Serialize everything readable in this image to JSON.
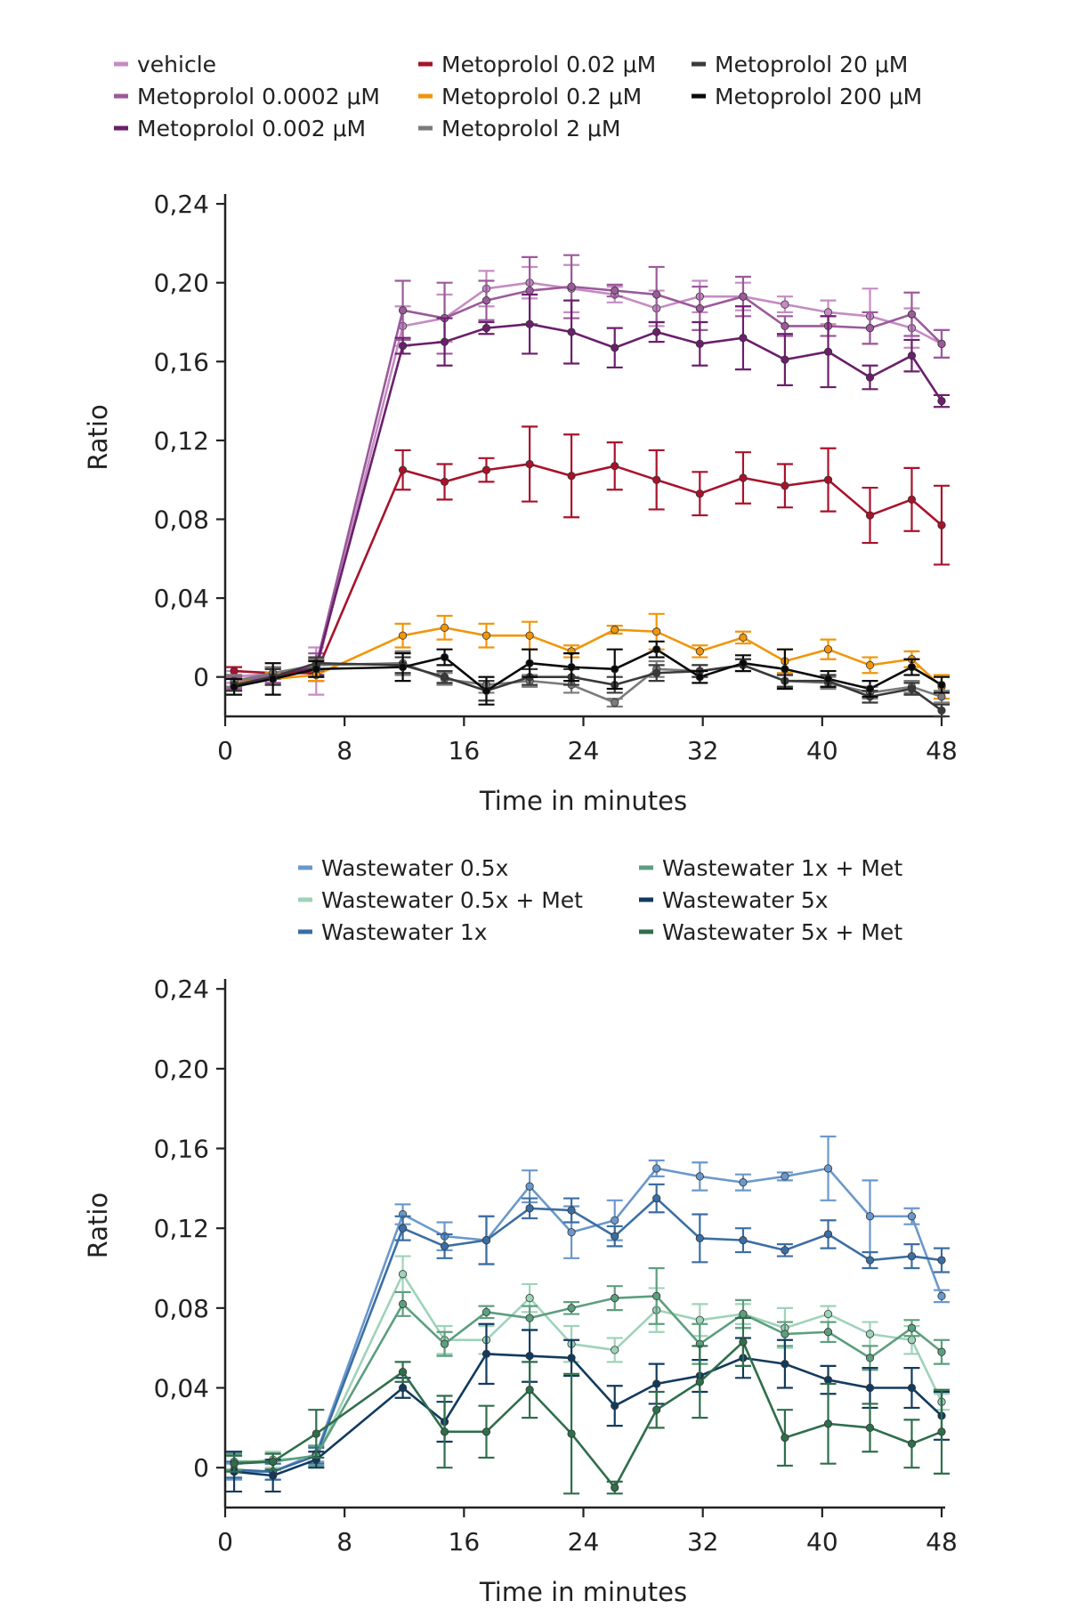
{
  "chart_data": [
    {
      "type": "line",
      "xlabel": "Time in minutes",
      "ylabel": "Ratio",
      "xlim": [
        0,
        48
      ],
      "ylim": [
        -0.02,
        0.245
      ],
      "xticks": [
        "0",
        "8",
        "16",
        "24",
        "32",
        "40",
        "48"
      ],
      "xtick_values": [
        0,
        8,
        16,
        24,
        32,
        40,
        48
      ],
      "yticks": [
        "0",
        "0,04",
        "0,08",
        "0,12",
        "0,16",
        "0,20",
        "0,24"
      ],
      "ytick_values": [
        0,
        0.04,
        0.08,
        0.12,
        0.16,
        0.2,
        0.24
      ],
      "legend_placement": "top",
      "x": [
        0.6,
        3.2,
        6.1,
        11.9,
        14.7,
        17.5,
        20.4,
        23.2,
        26.1,
        28.9,
        31.8,
        34.7,
        37.5,
        40.4,
        43.2,
        46.0,
        48.0
      ],
      "series": [
        {
          "name": "vehicle",
          "color": "#c58cc3",
          "values": [
            0.0,
            0.002,
            0.003,
            0.178,
            0.182,
            0.197,
            0.2,
            0.197,
            0.194,
            0.187,
            0.193,
            0.193,
            0.189,
            0.185,
            0.183,
            0.177,
            0.169
          ],
          "errors": [
            0.003,
            0.005,
            0.012,
            0.01,
            0.012,
            0.009,
            0.008,
            0.012,
            0.004,
            0.009,
            0.008,
            0.007,
            0.004,
            0.006,
            0.014,
            0.01,
            0.007
          ]
        },
        {
          "name": "Metoprolol 0.0002 μM",
          "color": "#9b5a9a",
          "values": [
            -0.003,
            0.001,
            0.006,
            0.186,
            0.182,
            0.191,
            0.196,
            0.198,
            0.196,
            0.194,
            0.187,
            0.193,
            0.178,
            0.178,
            0.177,
            0.184,
            0.169
          ],
          "errors": [
            0.003,
            0.004,
            0.006,
            0.015,
            0.018,
            0.01,
            0.017,
            0.016,
            0.003,
            0.014,
            0.011,
            0.01,
            0.005,
            0.005,
            0.008,
            0.011,
            0.007
          ]
        },
        {
          "name": "Metoprolol 0.002 μM",
          "color": "#6b1f6b",
          "values": [
            -0.004,
            0.0,
            0.005,
            0.168,
            0.17,
            0.177,
            0.179,
            0.175,
            0.167,
            0.175,
            0.169,
            0.172,
            0.161,
            0.165,
            0.152,
            0.163,
            0.14
          ],
          "errors": [
            0.003,
            0.004,
            0.004,
            0.004,
            0.012,
            0.003,
            0.015,
            0.016,
            0.01,
            0.005,
            0.011,
            0.016,
            0.013,
            0.018,
            0.006,
            0.008,
            0.003
          ]
        },
        {
          "name": "Metoprolol 0.02 μM",
          "color": "#a8122b",
          "values": [
            0.003,
            0.002,
            0.002,
            0.105,
            0.099,
            0.105,
            0.108,
            0.102,
            0.107,
            0.1,
            0.093,
            0.101,
            0.097,
            0.1,
            0.082,
            0.09,
            0.077
          ],
          "errors": [
            0.002,
            0.003,
            0.004,
            0.01,
            0.009,
            0.006,
            0.019,
            0.021,
            0.012,
            0.015,
            0.011,
            0.013,
            0.011,
            0.016,
            0.014,
            0.016,
            0.02
          ]
        },
        {
          "name": "Metoprolol 0.2 μM",
          "color": "#f0960a",
          "values": [
            -0.003,
            -0.001,
            0.001,
            0.021,
            0.025,
            0.021,
            0.021,
            0.013,
            0.024,
            0.023,
            0.013,
            0.02,
            0.008,
            0.014,
            0.006,
            0.009,
            -0.005
          ],
          "errors": [
            0.002,
            0.003,
            0.003,
            0.006,
            0.006,
            0.006,
            0.007,
            0.003,
            0.002,
            0.009,
            0.003,
            0.003,
            0.006,
            0.005,
            0.004,
            0.004,
            0.006
          ]
        },
        {
          "name": "Metoprolol 2 μM",
          "color": "#7a7a7a",
          "values": [
            -0.002,
            0.002,
            0.006,
            0.007,
            -0.001,
            -0.004,
            -0.002,
            -0.004,
            -0.013,
            0.004,
            0.003,
            0.006,
            -0.002,
            -0.003,
            -0.008,
            -0.005,
            -0.01
          ],
          "errors": [
            0.003,
            0.003,
            0.003,
            0.006,
            0.003,
            0.004,
            0.003,
            0.004,
            0.002,
            0.004,
            0.003,
            0.003,
            0.003,
            0.003,
            0.003,
            0.003,
            0.003
          ]
        },
        {
          "name": "Metoprolol 20 μM",
          "color": "#3a3a3a",
          "values": [
            -0.004,
            0.0,
            0.007,
            0.006,
            0.0,
            -0.007,
            0.0,
            0.0,
            -0.004,
            0.002,
            0.003,
            0.006,
            -0.002,
            -0.002,
            -0.01,
            -0.006,
            -0.017
          ],
          "errors": [
            0.003,
            0.004,
            0.003,
            0.004,
            0.003,
            0.005,
            0.004,
            0.004,
            0.004,
            0.004,
            0.003,
            0.003,
            0.003,
            0.003,
            0.003,
            0.003,
            0.003
          ]
        },
        {
          "name": "Metoprolol 200 μM",
          "color": "#0a0a0a",
          "values": [
            -0.005,
            -0.001,
            0.004,
            0.005,
            0.01,
            -0.007,
            0.007,
            0.005,
            0.004,
            0.014,
            0.0,
            0.007,
            0.004,
            -0.001,
            -0.006,
            0.005,
            -0.004
          ],
          "errors": [
            0.004,
            0.008,
            0.004,
            0.007,
            0.004,
            0.007,
            0.007,
            0.007,
            0.01,
            0.004,
            0.003,
            0.004,
            0.01,
            0.004,
            0.004,
            0.004,
            0.004
          ]
        }
      ]
    },
    {
      "type": "line",
      "xlabel": "Time in minutes",
      "ylabel": "Ratio",
      "xlim": [
        0,
        48
      ],
      "ylim": [
        -0.02,
        0.245
      ],
      "xticks": [
        "0",
        "8",
        "16",
        "24",
        "32",
        "40",
        "48"
      ],
      "xtick_values": [
        0,
        8,
        16,
        24,
        32,
        40,
        48
      ],
      "yticks": [
        "0",
        "0,04",
        "0,08",
        "0,12",
        "0,16",
        "0,20",
        "0,24"
      ],
      "ytick_values": [
        0,
        0.04,
        0.08,
        0.12,
        0.16,
        0.2,
        0.24
      ],
      "legend_placement": "top",
      "x": [
        0.6,
        3.2,
        6.1,
        11.9,
        14.7,
        17.5,
        20.4,
        23.2,
        26.1,
        28.9,
        31.8,
        34.7,
        37.5,
        40.4,
        43.2,
        46.0,
        48.0
      ],
      "series": [
        {
          "name": "Wastewater 0.5x",
          "color": "#6a98cc",
          "values": [
            -0.002,
            -0.002,
            0.007,
            0.127,
            0.116,
            0.114,
            0.141,
            0.118,
            0.124,
            0.15,
            0.146,
            0.143,
            0.146,
            0.15,
            0.126,
            0.126,
            0.086
          ],
          "errors": [
            0.004,
            0.004,
            0.004,
            0.005,
            0.007,
            0.012,
            0.008,
            0.013,
            0.01,
            0.004,
            0.007,
            0.004,
            0.002,
            0.016,
            0.018,
            0.004,
            0.003
          ]
        },
        {
          "name": "Wastewater 0.5x + Met",
          "color": "#9fd3b9",
          "values": [
            0.002,
            0.004,
            0.005,
            0.097,
            0.064,
            0.064,
            0.085,
            0.062,
            0.059,
            0.079,
            0.074,
            0.077,
            0.07,
            0.077,
            0.067,
            0.064,
            0.033
          ],
          "errors": [
            0.004,
            0.004,
            0.005,
            0.009,
            0.007,
            0.007,
            0.007,
            0.009,
            0.006,
            0.011,
            0.008,
            0.005,
            0.01,
            0.004,
            0.006,
            0.007,
            0.004
          ]
        },
        {
          "name": "Wastewater 1x",
          "color": "#3b6ea3",
          "values": [
            -0.001,
            -0.002,
            0.006,
            0.12,
            0.111,
            0.114,
            0.13,
            0.129,
            0.116,
            0.135,
            0.115,
            0.114,
            0.109,
            0.117,
            0.104,
            0.106,
            0.104
          ],
          "errors": [
            0.004,
            0.004,
            0.004,
            0.006,
            0.006,
            0.012,
            0.005,
            0.006,
            0.005,
            0.007,
            0.012,
            0.006,
            0.003,
            0.007,
            0.004,
            0.006,
            0.006
          ]
        },
        {
          "name": "Wastewater 1x + Met",
          "color": "#5c9f7e",
          "values": [
            0.003,
            0.003,
            0.006,
            0.082,
            0.062,
            0.078,
            0.075,
            0.08,
            0.085,
            0.086,
            0.062,
            0.077,
            0.067,
            0.068,
            0.055,
            0.07,
            0.058
          ],
          "errors": [
            0.004,
            0.004,
            0.005,
            0.006,
            0.006,
            0.003,
            0.006,
            0.003,
            0.006,
            0.014,
            0.01,
            0.007,
            0.006,
            0.005,
            0.006,
            0.004,
            0.006
          ]
        },
        {
          "name": "Wastewater 5x",
          "color": "#123a5e",
          "values": [
            -0.002,
            -0.004,
            0.004,
            0.04,
            0.023,
            0.057,
            0.056,
            0.055,
            0.031,
            0.042,
            0.046,
            0.055,
            0.052,
            0.044,
            0.04,
            0.04,
            0.026
          ],
          "errors": [
            0.01,
            0.008,
            0.004,
            0.005,
            0.01,
            0.015,
            0.013,
            0.009,
            0.01,
            0.01,
            0.008,
            0.01,
            0.012,
            0.007,
            0.01,
            0.01,
            0.012
          ]
        },
        {
          "name": "Wastewater 5x + Met",
          "color": "#2f6e4b",
          "values": [
            0.002,
            0.003,
            0.017,
            0.048,
            0.018,
            0.018,
            0.039,
            0.017,
            -0.01,
            0.029,
            0.043,
            0.063,
            0.015,
            0.022,
            0.02,
            0.012,
            0.018
          ],
          "errors": [
            0.004,
            0.004,
            0.012,
            0.005,
            0.018,
            0.013,
            0.014,
            0.03,
            0.003,
            0.009,
            0.018,
            0.012,
            0.014,
            0.02,
            0.012,
            0.012,
            0.021
          ]
        }
      ]
    }
  ]
}
